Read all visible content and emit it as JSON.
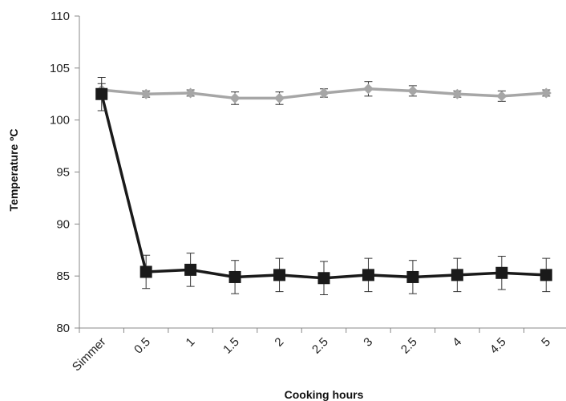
{
  "chart_data": {
    "type": "line",
    "categories": [
      "Simmer",
      "0.5",
      "1",
      "1.5",
      "2",
      "2.5",
      "3",
      "2.5",
      "4",
      "4.5",
      "5"
    ],
    "series": [
      {
        "marker": "diamond",
        "color": "#a6a6a6",
        "values": [
          102.9,
          102.5,
          102.6,
          102.1,
          102.1,
          102.6,
          103.0,
          102.8,
          102.5,
          102.3,
          102.6
        ],
        "error": [
          0.6,
          0.3,
          0.3,
          0.6,
          0.6,
          0.4,
          0.7,
          0.5,
          0.3,
          0.5,
          0.3
        ]
      },
      {
        "marker": "square",
        "color": "#1a1a1a",
        "values": [
          102.5,
          85.4,
          85.6,
          84.9,
          85.1,
          84.8,
          85.1,
          84.9,
          85.1,
          85.3,
          85.1
        ],
        "error": [
          1.6,
          1.6,
          1.6,
          1.6,
          1.6,
          1.6,
          1.6,
          1.6,
          1.6,
          1.6,
          1.6
        ]
      }
    ],
    "xlabel": "Cooking hours",
    "ylabel": "Temperature ºC",
    "ylim": [
      80,
      110
    ],
    "yticks": [
      80,
      85,
      90,
      95,
      100,
      105,
      110
    ],
    "grid": false,
    "legend": "none"
  }
}
